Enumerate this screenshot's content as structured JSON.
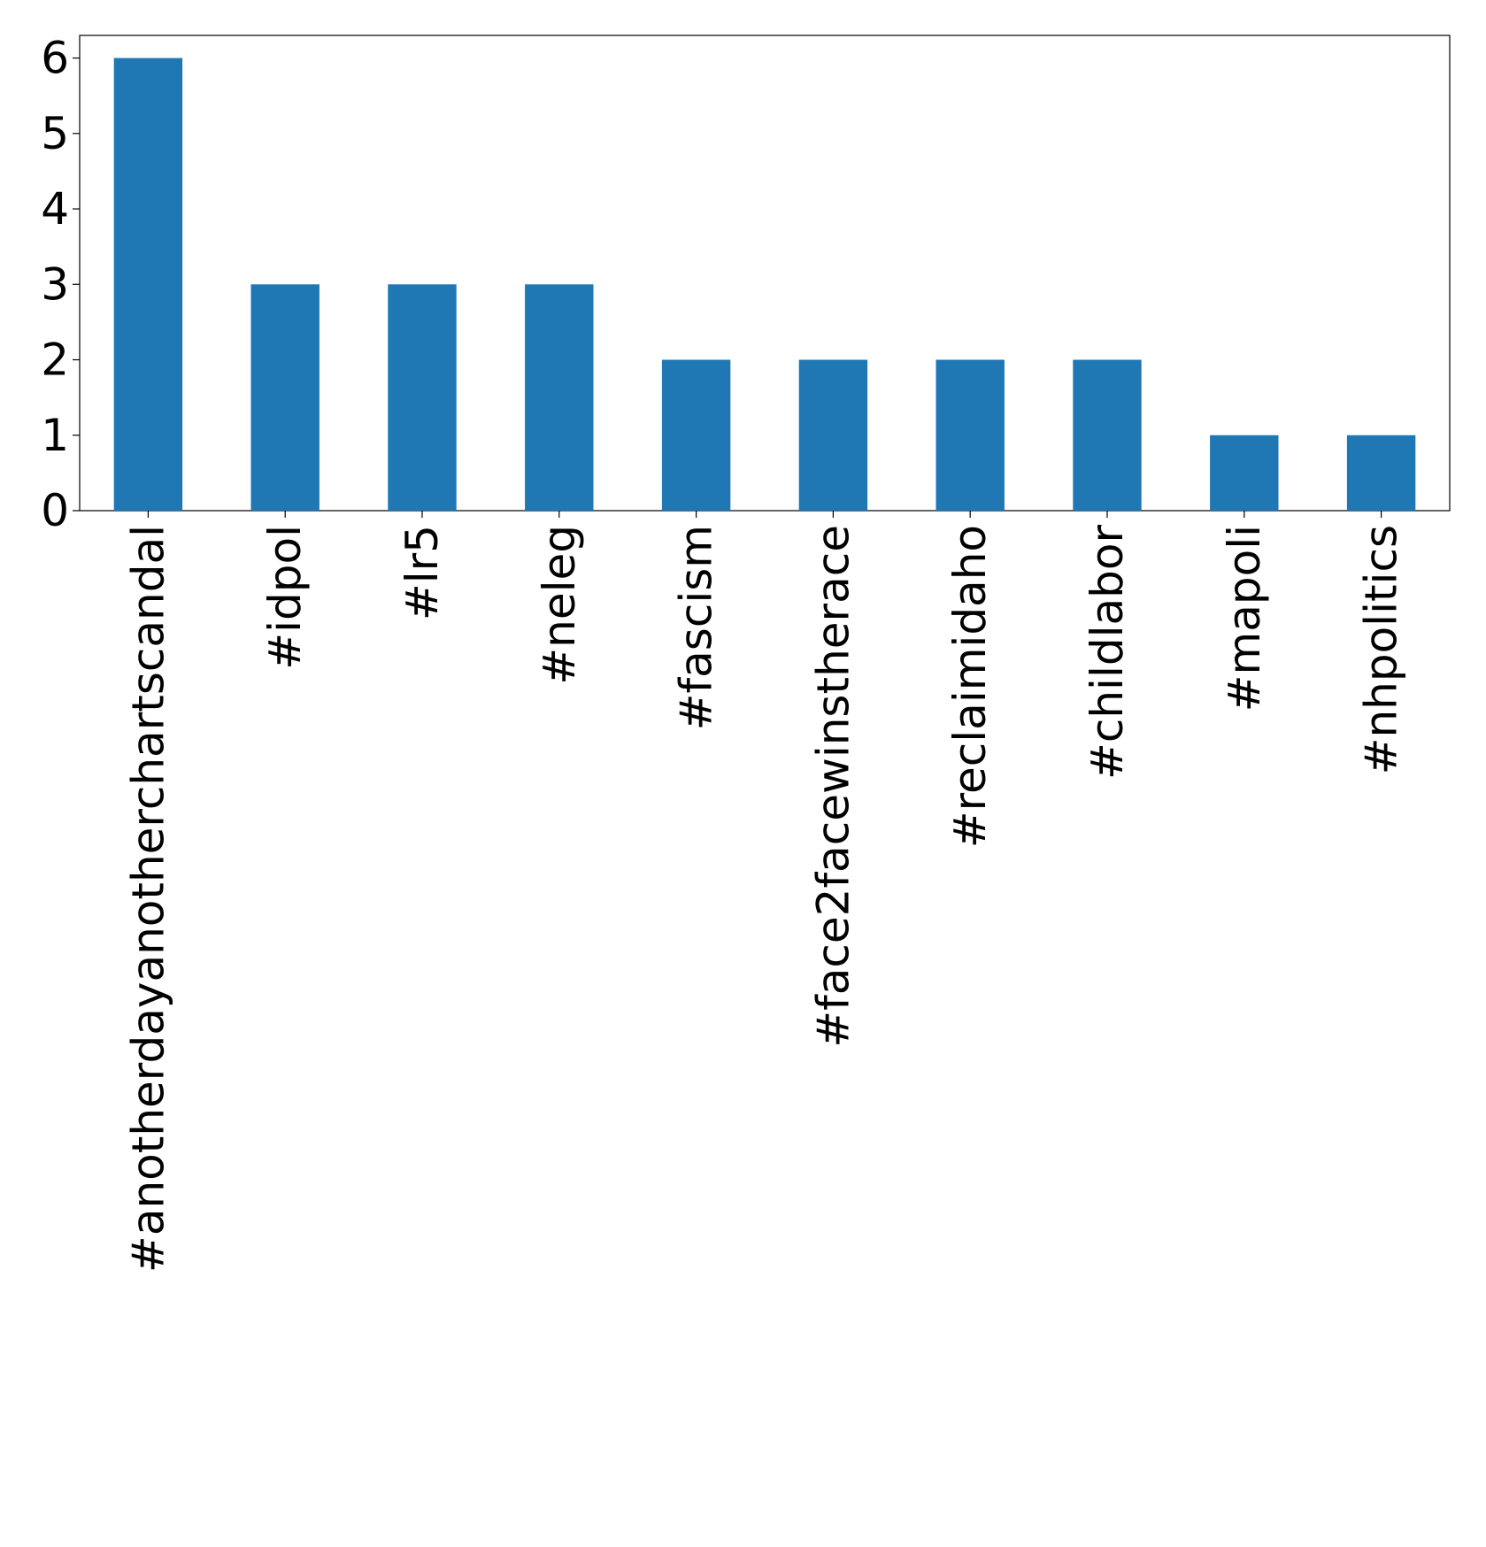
{
  "chart_data": {
    "type": "bar",
    "title": "",
    "xlabel": "",
    "ylabel": "",
    "categories": [
      "#anotherdayanotherchartscandal",
      "#idpol",
      "#lr5",
      "#neleg",
      "#fascism",
      "#face2facewinstherace",
      "#reclaimidaho",
      "#childlabor",
      "#mapoli",
      "#nhpolitics"
    ],
    "values": [
      6,
      3,
      3,
      3,
      2,
      2,
      2,
      2,
      1,
      1
    ],
    "ylim": [
      0,
      6.3
    ],
    "yticks": [
      0,
      1,
      2,
      3,
      4,
      5,
      6
    ],
    "grid": false,
    "legend": "none",
    "colors": {
      "bar": "#1f77b4",
      "axis": "#000000",
      "background": "#ffffff"
    }
  }
}
